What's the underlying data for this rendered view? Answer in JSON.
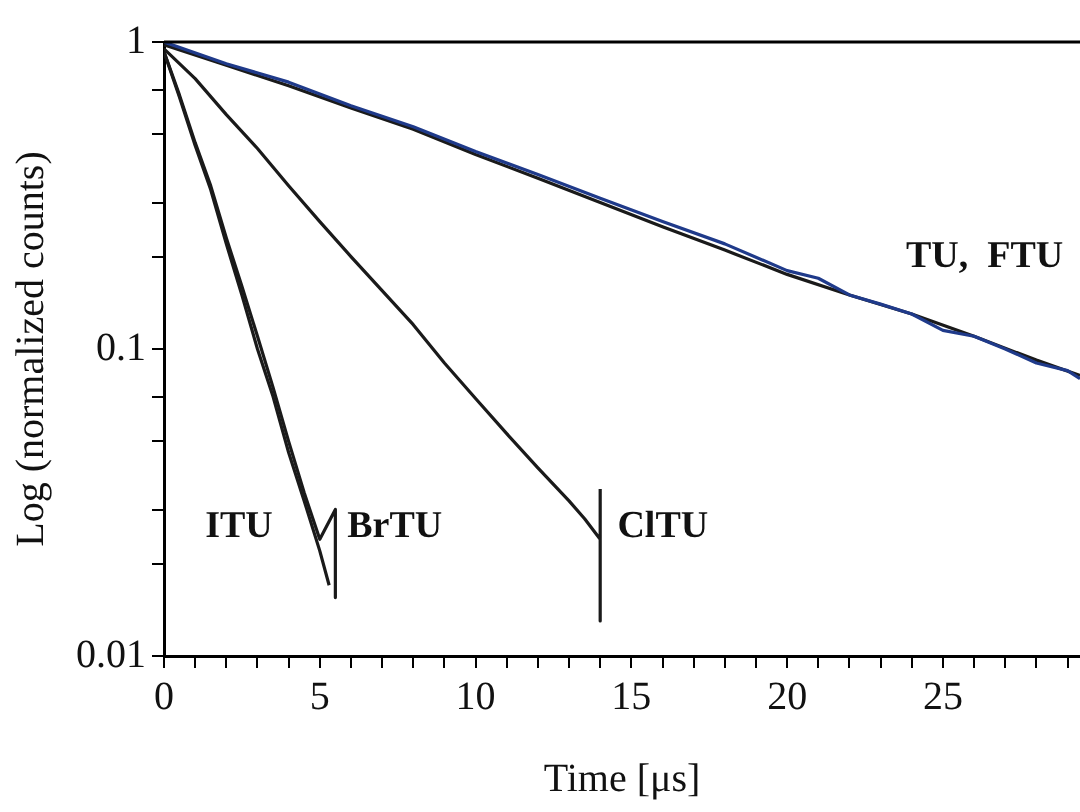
{
  "chart_data": {
    "type": "line",
    "xlabel": "Time [μs]",
    "ylabel": "Log (normalized counts)",
    "log": "y",
    "grid": false,
    "legend": false,
    "marker": "none",
    "line_style": "solid",
    "xlim": [
      0,
      29.4
    ],
    "ylim": [
      0.01,
      1
    ],
    "xticks": [
      0,
      {
        "value": 1,
        "label": null
      },
      {
        "value": 2,
        "label": null
      },
      {
        "value": 3,
        "label": null
      },
      {
        "value": 4,
        "label": null
      },
      5,
      {
        "value": 6,
        "label": null
      },
      {
        "value": 7,
        "label": null
      },
      {
        "value": 8,
        "label": null
      },
      {
        "value": 9,
        "label": null
      },
      10,
      {
        "value": 11,
        "label": null
      },
      {
        "value": 12,
        "label": null
      },
      {
        "value": 13,
        "label": null
      },
      {
        "value": 14,
        "label": null
      },
      15,
      {
        "value": 16,
        "label": null
      },
      {
        "value": 17,
        "label": null
      },
      {
        "value": 18,
        "label": null
      },
      {
        "value": 19,
        "label": null
      },
      20,
      {
        "value": 21,
        "label": null
      },
      {
        "value": 22,
        "label": null
      },
      {
        "value": 23,
        "label": null
      },
      {
        "value": 24,
        "label": null
      },
      25,
      {
        "value": 26,
        "label": null
      },
      {
        "value": 27,
        "label": null
      },
      {
        "value": 28,
        "label": null
      },
      {
        "value": 29,
        "label": null
      }
    ],
    "yticks": [
      0.01,
      {
        "value": 0.02,
        "label": null
      },
      {
        "value": 0.03,
        "label": null
      },
      {
        "value": 0.05,
        "label": null
      },
      {
        "value": 0.07,
        "label": null
      },
      0.1,
      {
        "value": 0.2,
        "label": null
      },
      {
        "value": 0.3,
        "label": null
      },
      {
        "value": 0.5,
        "label": null
      },
      {
        "value": 0.7,
        "label": null
      },
      1
    ],
    "series": [
      {
        "color": "#1f3a8a",
        "x": [
          0,
          2,
          4,
          6,
          8,
          10,
          12,
          14,
          16,
          18,
          20,
          21,
          22,
          23,
          24,
          25,
          26,
          27,
          28,
          29,
          29.4
        ],
        "values": [
          1,
          0.85,
          0.74,
          0.62,
          0.53,
          0.44,
          0.37,
          0.31,
          0.26,
          0.22,
          0.18,
          0.17,
          0.15,
          0.14,
          0.13,
          0.115,
          0.11,
          0.1,
          0.09,
          0.085,
          0.08
        ]
      },
      {
        "color": "#1a1a1a",
        "x": [
          0,
          2,
          4,
          6,
          8,
          10,
          12,
          14,
          16,
          18,
          20,
          22,
          24,
          26,
          28,
          29.4
        ],
        "values": [
          0.98,
          0.84,
          0.72,
          0.61,
          0.52,
          0.43,
          0.36,
          0.3,
          0.25,
          0.21,
          0.175,
          0.15,
          0.13,
          0.11,
          0.092,
          0.082
        ]
      },
      {
        "color": "#1a1a1a",
        "x": [
          0,
          1,
          2,
          3,
          4,
          5,
          6,
          7,
          8,
          9,
          10,
          11,
          12,
          13,
          13.5,
          14,
          14,
          14
        ],
        "values": [
          0.95,
          0.76,
          0.58,
          0.45,
          0.34,
          0.26,
          0.2,
          0.155,
          0.12,
          0.09,
          0.069,
          0.053,
          0.041,
          0.032,
          0.028,
          0.024,
          0.013,
          0.035
        ]
      },
      {
        "color": "#1a1a1a",
        "x": [
          0,
          0.5,
          1,
          1.5,
          2,
          2.5,
          3,
          3.5,
          4,
          4.5,
          5,
          5.3
        ],
        "values": [
          0.93,
          0.66,
          0.46,
          0.33,
          0.22,
          0.15,
          0.1,
          0.07,
          0.046,
          0.032,
          0.022,
          0.017
        ]
      },
      {
        "color": "#1a1a1a",
        "x": [
          0,
          0.5,
          1,
          1.5,
          2,
          2.5,
          3,
          3.5,
          4,
          4.5,
          5,
          5.5,
          5.5
        ],
        "values": [
          0.93,
          0.67,
          0.47,
          0.34,
          0.23,
          0.16,
          0.11,
          0.075,
          0.05,
          0.034,
          0.024,
          0.03,
          0.0155
        ]
      }
    ],
    "annotations": [
      "ITU",
      "BrTU",
      "ClTU",
      "TU,  FTU"
    ]
  }
}
